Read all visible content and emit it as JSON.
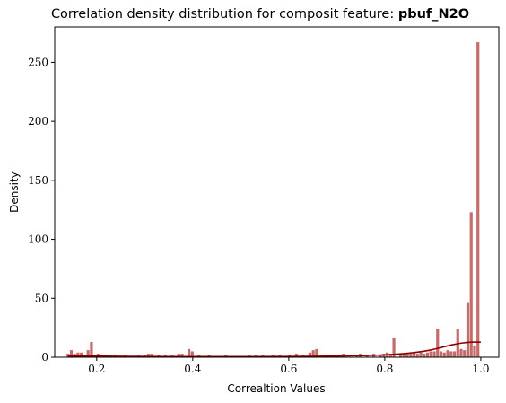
{
  "chart_data": {
    "type": "bar",
    "title": "Correlation density distribution for composit feature: ",
    "title_feature": "pbuf_N2O",
    "xlabel": "Correaltion Values",
    "ylabel": "Density",
    "xlim": [
      0.1125,
      1.0375
    ],
    "ylim": [
      0,
      280
    ],
    "x_ticks": [
      0.2,
      0.4,
      0.6,
      0.8,
      1.0
    ],
    "x_tick_labels": [
      "0.2",
      "0.4",
      "0.6",
      "0.8",
      "1.0"
    ],
    "y_ticks": [
      0,
      50,
      100,
      150,
      200,
      250
    ],
    "y_tick_labels": [
      "0",
      "50",
      "100",
      "150",
      "200",
      "250"
    ],
    "bar_width": 0.006,
    "bar_color": "#b03a3a",
    "kde_color": "#8b0000",
    "grid": false,
    "legend": "none",
    "bars": [
      {
        "x": 0.14,
        "y": 3
      },
      {
        "x": 0.147,
        "y": 6
      },
      {
        "x": 0.154,
        "y": 3
      },
      {
        "x": 0.161,
        "y": 4
      },
      {
        "x": 0.168,
        "y": 4
      },
      {
        "x": 0.175,
        "y": 2
      },
      {
        "x": 0.182,
        "y": 6
      },
      {
        "x": 0.189,
        "y": 13
      },
      {
        "x": 0.196,
        "y": 2
      },
      {
        "x": 0.203,
        "y": 3
      },
      {
        "x": 0.21,
        "y": 2
      },
      {
        "x": 0.224,
        "y": 2
      },
      {
        "x": 0.238,
        "y": 2
      },
      {
        "x": 0.259,
        "y": 2
      },
      {
        "x": 0.287,
        "y": 2
      },
      {
        "x": 0.301,
        "y": 2
      },
      {
        "x": 0.308,
        "y": 3
      },
      {
        "x": 0.315,
        "y": 3
      },
      {
        "x": 0.329,
        "y": 2
      },
      {
        "x": 0.343,
        "y": 2
      },
      {
        "x": 0.357,
        "y": 2
      },
      {
        "x": 0.371,
        "y": 3
      },
      {
        "x": 0.378,
        "y": 3
      },
      {
        "x": 0.392,
        "y": 7
      },
      {
        "x": 0.399,
        "y": 5
      },
      {
        "x": 0.413,
        "y": 2
      },
      {
        "x": 0.434,
        "y": 2
      },
      {
        "x": 0.469,
        "y": 2
      },
      {
        "x": 0.518,
        "y": 2
      },
      {
        "x": 0.532,
        "y": 2
      },
      {
        "x": 0.546,
        "y": 2
      },
      {
        "x": 0.567,
        "y": 2
      },
      {
        "x": 0.581,
        "y": 2
      },
      {
        "x": 0.602,
        "y": 2
      },
      {
        "x": 0.616,
        "y": 3
      },
      {
        "x": 0.63,
        "y": 2
      },
      {
        "x": 0.644,
        "y": 4
      },
      {
        "x": 0.651,
        "y": 6
      },
      {
        "x": 0.658,
        "y": 7
      },
      {
        "x": 0.7,
        "y": 2
      },
      {
        "x": 0.714,
        "y": 3
      },
      {
        "x": 0.742,
        "y": 2
      },
      {
        "x": 0.749,
        "y": 3
      },
      {
        "x": 0.763,
        "y": 2
      },
      {
        "x": 0.777,
        "y": 3
      },
      {
        "x": 0.791,
        "y": 2
      },
      {
        "x": 0.798,
        "y": 3
      },
      {
        "x": 0.805,
        "y": 4
      },
      {
        "x": 0.812,
        "y": 3
      },
      {
        "x": 0.819,
        "y": 16
      },
      {
        "x": 0.833,
        "y": 3
      },
      {
        "x": 0.84,
        "y": 3
      },
      {
        "x": 0.847,
        "y": 3
      },
      {
        "x": 0.854,
        "y": 3
      },
      {
        "x": 0.861,
        "y": 4
      },
      {
        "x": 0.868,
        "y": 3
      },
      {
        "x": 0.875,
        "y": 4
      },
      {
        "x": 0.882,
        "y": 3
      },
      {
        "x": 0.889,
        "y": 4
      },
      {
        "x": 0.896,
        "y": 5
      },
      {
        "x": 0.903,
        "y": 5
      },
      {
        "x": 0.91,
        "y": 24
      },
      {
        "x": 0.917,
        "y": 5
      },
      {
        "x": 0.924,
        "y": 4
      },
      {
        "x": 0.931,
        "y": 6
      },
      {
        "x": 0.938,
        "y": 5
      },
      {
        "x": 0.945,
        "y": 5
      },
      {
        "x": 0.952,
        "y": 24
      },
      {
        "x": 0.959,
        "y": 7
      },
      {
        "x": 0.966,
        "y": 6
      },
      {
        "x": 0.973,
        "y": 46
      },
      {
        "x": 0.98,
        "y": 123
      },
      {
        "x": 0.987,
        "y": 10
      },
      {
        "x": 0.994,
        "y": 267
      }
    ],
    "kde": {
      "x": [
        0.14,
        0.2,
        0.3,
        0.4,
        0.5,
        0.6,
        0.7,
        0.75,
        0.8,
        0.85,
        0.88,
        0.9,
        0.92,
        0.94,
        0.96,
        0.98,
        1.0
      ],
      "y": [
        1.0,
        1.0,
        0.6,
        0.5,
        0.5,
        0.6,
        1.0,
        1.4,
        2.0,
        3.5,
        5.0,
        6.5,
        8.5,
        10.5,
        12.0,
        12.8,
        12.8
      ]
    }
  }
}
